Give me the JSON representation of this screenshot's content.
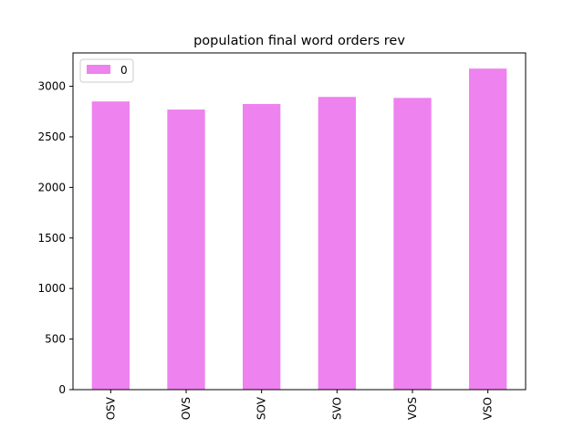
{
  "chart_data": {
    "type": "bar",
    "title": "population final word orders rev",
    "xlabel": "",
    "ylabel": "",
    "categories": [
      "OSV",
      "OVS",
      "SOV",
      "SVO",
      "VOS",
      "VSO"
    ],
    "series": [
      {
        "name": "0",
        "values": [
          2850,
          2770,
          2825,
          2895,
          2885,
          3175
        ]
      }
    ],
    "ylim": [
      0,
      3330
    ],
    "yticks": [
      0,
      500,
      1000,
      1500,
      2000,
      2500,
      3000
    ],
    "bar_color": "#ee82ee",
    "grid": false,
    "legend_position": "upper left",
    "x_tick_rotation": "vertical"
  }
}
